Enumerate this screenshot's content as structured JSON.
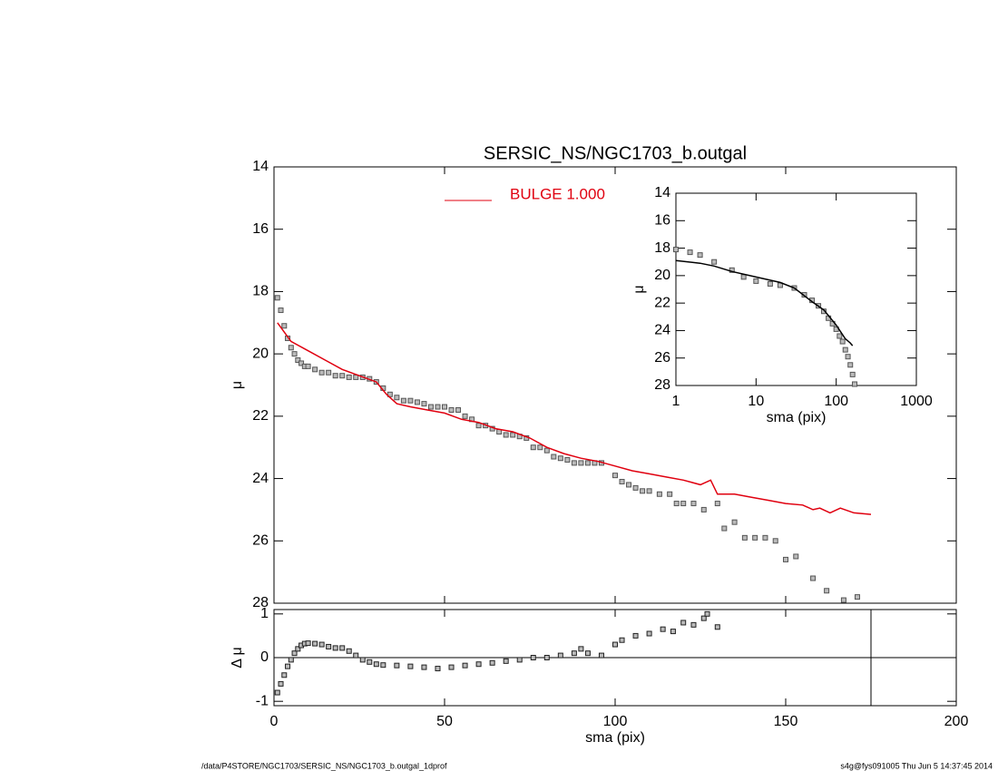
{
  "chart_data": [
    {
      "type": "line",
      "title": "SERSIC_NS/NGC1703_b.outgal",
      "ylabel": "μ",
      "xlim": [
        0,
        200
      ],
      "xticks": [
        0,
        50,
        100,
        150,
        200
      ],
      "ylim": [
        28,
        14
      ],
      "yticks": [
        14,
        16,
        18,
        20,
        22,
        24,
        26,
        28
      ],
      "legend": "top",
      "series": [
        {
          "marker": "square",
          "color": "#555555",
          "x": [
            1,
            2,
            3,
            4,
            5,
            6,
            7,
            8,
            9,
            10,
            12,
            14,
            16,
            18,
            20,
            22,
            24,
            26,
            28,
            30,
            32,
            34,
            36,
            38,
            40,
            42,
            44,
            46,
            48,
            50,
            52,
            54,
            56,
            58,
            60,
            62,
            64,
            66,
            68,
            70,
            72,
            74,
            76,
            78,
            80,
            82,
            84,
            86,
            88,
            90,
            92,
            94,
            96,
            100,
            102,
            104,
            106,
            108,
            110,
            113,
            116,
            118,
            120,
            123,
            126,
            130,
            132,
            135,
            138,
            141,
            144,
            147,
            150,
            153,
            158,
            162,
            167,
            171
          ],
          "values": [
            18.2,
            18.6,
            19.1,
            19.5,
            19.8,
            20.0,
            20.2,
            20.3,
            20.4,
            20.4,
            20.5,
            20.6,
            20.6,
            20.7,
            20.7,
            20.75,
            20.75,
            20.75,
            20.8,
            20.9,
            21.1,
            21.3,
            21.4,
            21.5,
            21.5,
            21.55,
            21.6,
            21.7,
            21.7,
            21.7,
            21.8,
            21.8,
            22.0,
            22.1,
            22.3,
            22.3,
            22.4,
            22.5,
            22.6,
            22.6,
            22.65,
            22.7,
            23.0,
            23.0,
            23.1,
            23.3,
            23.35,
            23.4,
            23.5,
            23.5,
            23.5,
            23.5,
            23.5,
            23.9,
            24.1,
            24.2,
            24.3,
            24.4,
            24.4,
            24.5,
            24.5,
            24.8,
            24.8,
            24.8,
            25.0,
            24.8,
            25.6,
            25.4,
            25.9,
            25.9,
            25.9,
            26.0,
            26.6,
            26.5,
            27.2,
            27.6,
            27.9,
            27.8
          ]
        },
        {
          "marker": "line",
          "name": "BULGE  1.000",
          "color": "#e0000f",
          "x": [
            1,
            5,
            10,
            15,
            20,
            25,
            30,
            33,
            36,
            40,
            45,
            50,
            55,
            60,
            65,
            70,
            75,
            80,
            85,
            90,
            95,
            100,
            105,
            110,
            115,
            120,
            125,
            128,
            130,
            135,
            140,
            145,
            150,
            155,
            158,
            160,
            163,
            166,
            170,
            175
          ],
          "values": [
            19.0,
            19.6,
            19.9,
            20.2,
            20.5,
            20.7,
            20.9,
            21.3,
            21.6,
            21.7,
            21.8,
            21.9,
            22.1,
            22.2,
            22.4,
            22.5,
            22.7,
            23.0,
            23.2,
            23.35,
            23.45,
            23.6,
            23.75,
            23.85,
            23.95,
            24.05,
            24.2,
            24.05,
            24.5,
            24.5,
            24.6,
            24.7,
            24.8,
            24.85,
            25.0,
            24.95,
            25.1,
            24.95,
            25.1,
            25.15
          ]
        }
      ]
    },
    {
      "type": "scatter",
      "xlabel": "sma (pix)",
      "ylabel": "Δ μ",
      "xlim": [
        0,
        200
      ],
      "xticks": [
        0,
        50,
        100,
        150,
        200
      ],
      "ylim": [
        -1.1,
        1.1
      ],
      "yticks": [
        -1,
        0,
        1
      ],
      "hline": 0,
      "vline": 175,
      "series": [
        {
          "marker": "square",
          "color": "#222222",
          "x": [
            1,
            2,
            3,
            4,
            5,
            6,
            7,
            8,
            9,
            10,
            12,
            14,
            16,
            18,
            20,
            22,
            24,
            26,
            28,
            30,
            32,
            36,
            40,
            44,
            48,
            52,
            56,
            60,
            64,
            68,
            72,
            76,
            80,
            84,
            88,
            90,
            92,
            96,
            100,
            102,
            106,
            110,
            114,
            117,
            120,
            123,
            126,
            127,
            130
          ],
          "values": [
            -0.8,
            -0.6,
            -0.4,
            -0.2,
            -0.05,
            0.1,
            0.2,
            0.28,
            0.32,
            0.33,
            0.32,
            0.3,
            0.25,
            0.22,
            0.22,
            0.15,
            0.05,
            -0.05,
            -0.1,
            -0.15,
            -0.17,
            -0.18,
            -0.2,
            -0.22,
            -0.25,
            -0.22,
            -0.18,
            -0.15,
            -0.12,
            -0.08,
            -0.05,
            0,
            0,
            0.05,
            0.1,
            0.2,
            0.1,
            0.05,
            0.3,
            0.4,
            0.5,
            0.55,
            0.65,
            0.6,
            0.8,
            0.75,
            0.9,
            1.0,
            0.7
          ]
        }
      ]
    },
    {
      "type": "line",
      "xlabel": "sma (pix)",
      "ylabel": "μ",
      "xlog": true,
      "xlim": [
        1,
        1000
      ],
      "xticks": [
        1,
        10,
        100,
        1000
      ],
      "ylim": [
        28,
        14
      ],
      "yticks": [
        14,
        16,
        18,
        20,
        22,
        24,
        26,
        28
      ],
      "series": [
        {
          "marker": "square",
          "color": "#555555",
          "x": [
            1,
            1.5,
            2,
            3,
            5,
            7,
            10,
            15,
            20,
            30,
            40,
            50,
            60,
            70,
            80,
            90,
            100,
            110,
            120,
            130,
            140,
            150,
            160,
            170
          ],
          "values": [
            18.1,
            18.3,
            18.5,
            19.0,
            19.6,
            20.1,
            20.4,
            20.6,
            20.7,
            20.9,
            21.4,
            21.8,
            22.2,
            22.6,
            23.1,
            23.5,
            23.9,
            24.4,
            24.8,
            25.4,
            25.9,
            26.5,
            27.2,
            27.9
          ]
        },
        {
          "marker": "line",
          "color": "#000000",
          "x": [
            1,
            2,
            3,
            5,
            10,
            20,
            30,
            50,
            70,
            100,
            130,
            150,
            160
          ],
          "values": [
            18.9,
            19.1,
            19.3,
            19.7,
            20.1,
            20.5,
            20.9,
            21.9,
            22.5,
            23.6,
            24.6,
            24.9,
            25.1
          ]
        }
      ]
    }
  ],
  "footer": {
    "left": "/data/P4STORE/NGC1703/SERSIC_NS/NGC1703_b.outgal_1dprof",
    "right": "s4g@fys091005  Thu Jun  5 14:37:45 2014"
  }
}
